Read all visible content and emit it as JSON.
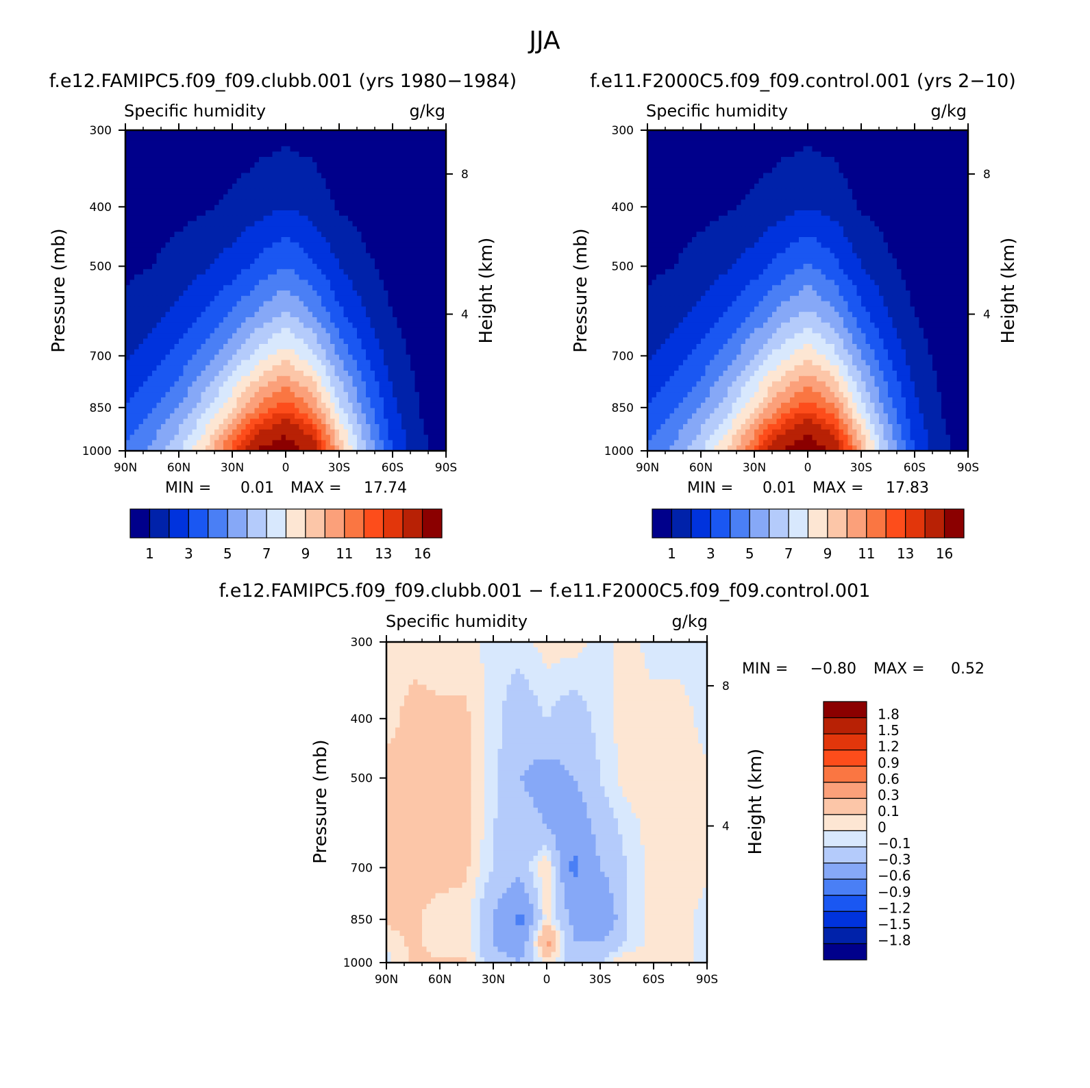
{
  "figure": {
    "title": "JJA"
  },
  "panels": [
    {
      "id": "p1",
      "title": "f.e12.FAMIPC5.f09_f09.clubb.001 (yrs 1980−1984)",
      "variable": "Specific humidity",
      "units": "g/kg",
      "ylabel": "Pressure (mb)",
      "ylabel_right": "Height (km)",
      "pressure_ticks": [
        "300",
        "400",
        "500",
        "700",
        "850",
        "1000"
      ],
      "height_ticks": [
        "8",
        "4"
      ],
      "lat_ticks": [
        "90N",
        "60N",
        "30N",
        "0",
        "30S",
        "60S",
        "90S"
      ],
      "min_label": "MIN =",
      "min_value": "0.01",
      "max_label": "MAX =",
      "max_value": "17.74",
      "colorbar_ticks": [
        "1",
        "3",
        "5",
        "7",
        "9",
        "11",
        "13",
        "16"
      ]
    },
    {
      "id": "p2",
      "title": "f.e11.F2000C5.f09_f09.control.001 (yrs 2−10)",
      "variable": "Specific humidity",
      "units": "g/kg",
      "ylabel": "Pressure (mb)",
      "ylabel_right": "Height (km)",
      "pressure_ticks": [
        "300",
        "400",
        "500",
        "700",
        "850",
        "1000"
      ],
      "height_ticks": [
        "8",
        "4"
      ],
      "lat_ticks": [
        "90N",
        "60N",
        "30N",
        "0",
        "30S",
        "60S",
        "90S"
      ],
      "min_label": "MIN =",
      "min_value": "0.01",
      "max_label": "MAX =",
      "max_value": "17.83",
      "colorbar_ticks": [
        "1",
        "3",
        "5",
        "7",
        "9",
        "11",
        "13",
        "16"
      ]
    },
    {
      "id": "p3",
      "title": "f.e12.FAMIPC5.f09_f09.clubb.001 − f.e11.F2000C5.f09_f09.control.001",
      "variable": "Specific humidity",
      "units": "g/kg",
      "ylabel": "Pressure (mb)",
      "ylabel_right": "Height (km)",
      "pressure_ticks": [
        "300",
        "400",
        "500",
        "700",
        "850",
        "1000"
      ],
      "height_ticks": [
        "8",
        "4"
      ],
      "lat_ticks": [
        "90N",
        "60N",
        "30N",
        "0",
        "30S",
        "60S",
        "90S"
      ],
      "min_label": "MIN =",
      "min_value": "−0.80",
      "max_label": "MAX =",
      "max_value": "0.52",
      "colorbar_ticks": [
        "1.8",
        "1.5",
        "1.2",
        "0.9",
        "0.6",
        "0.3",
        "0.1",
        "0",
        "−0.1",
        "−0.3",
        "−0.6",
        "−0.9",
        "−1.2",
        "−1.5",
        "−1.8"
      ]
    }
  ],
  "chart_data": [
    {
      "type": "heatmap",
      "title": "f.e12.FAMIPC5.f09_f09.clubb.001 (yrs 1980−1984)",
      "subtitle": "Specific humidity (g/kg)",
      "xlabel": "",
      "ylabel": "Pressure (mb)",
      "x_ticks": [
        "90N",
        "60N",
        "30N",
        "0",
        "30S",
        "60S",
        "90S"
      ],
      "xlim": [
        90,
        -90
      ],
      "ylim_pressure": [
        300,
        1000
      ],
      "y_scale": "log",
      "contour_levels": [
        1,
        2,
        3,
        4,
        5,
        6,
        7,
        8,
        9,
        10,
        11,
        12,
        13,
        14,
        16
      ],
      "latitudes": [
        90,
        75,
        60,
        45,
        30,
        15,
        0,
        -15,
        -30,
        -45,
        -60,
        -75,
        -90
      ],
      "pressures": [
        300,
        400,
        500,
        600,
        700,
        850,
        925,
        1000
      ],
      "values": [
        [
          0.2,
          0.2,
          0.3,
          0.3,
          0.4,
          0.6,
          0.7,
          0.6,
          0.3,
          0.2,
          0.1,
          0.05,
          0.02
        ],
        [
          0.4,
          0.5,
          0.7,
          0.9,
          1.2,
          1.6,
          2.0,
          1.6,
          0.9,
          0.6,
          0.3,
          0.1,
          0.05
        ],
        [
          0.8,
          1.0,
          1.4,
          1.9,
          2.5,
          3.3,
          4.0,
          3.2,
          2.0,
          1.2,
          0.6,
          0.2,
          0.1
        ],
        [
          1.3,
          1.7,
          2.3,
          3.1,
          4.1,
          5.3,
          6.2,
          5.1,
          3.3,
          2.0,
          1.0,
          0.4,
          0.2
        ],
        [
          1.9,
          2.5,
          3.3,
          4.5,
          5.9,
          7.5,
          8.6,
          7.3,
          4.9,
          3.0,
          1.5,
          0.7,
          0.3
        ],
        [
          3.0,
          3.8,
          5.0,
          6.7,
          8.9,
          11.2,
          12.6,
          10.9,
          7.3,
          4.5,
          2.2,
          1.0,
          0.5
        ],
        [
          3.6,
          4.6,
          6.0,
          8.0,
          10.7,
          13.7,
          15.3,
          13.2,
          8.8,
          5.4,
          2.6,
          1.1,
          0.6
        ],
        [
          4.1,
          5.3,
          6.8,
          9.2,
          12.5,
          16.2,
          17.74,
          15.2,
          10.0,
          6.0,
          3.0,
          1.2,
          0.6
        ]
      ],
      "min": 0.01,
      "max": 17.74
    },
    {
      "type": "heatmap",
      "title": "f.e11.F2000C5.f09_f09.control.001 (yrs 2−10)",
      "subtitle": "Specific humidity (g/kg)",
      "xlabel": "",
      "ylabel": "Pressure (mb)",
      "x_ticks": [
        "90N",
        "60N",
        "30N",
        "0",
        "30S",
        "60S",
        "90S"
      ],
      "xlim": [
        90,
        -90
      ],
      "ylim_pressure": [
        300,
        1000
      ],
      "y_scale": "log",
      "contour_levels": [
        1,
        2,
        3,
        4,
        5,
        6,
        7,
        8,
        9,
        10,
        11,
        12,
        13,
        14,
        16
      ],
      "latitudes": [
        90,
        75,
        60,
        45,
        30,
        15,
        0,
        -15,
        -30,
        -45,
        -60,
        -75,
        -90
      ],
      "pressures": [
        300,
        400,
        500,
        600,
        700,
        850,
        925,
        1000
      ],
      "values": [
        [
          0.2,
          0.2,
          0.3,
          0.3,
          0.4,
          0.6,
          0.7,
          0.6,
          0.3,
          0.2,
          0.1,
          0.05,
          0.02
        ],
        [
          0.4,
          0.5,
          0.7,
          0.9,
          1.2,
          1.6,
          2.0,
          1.6,
          0.9,
          0.6,
          0.3,
          0.1,
          0.05
        ],
        [
          0.8,
          1.0,
          1.4,
          1.9,
          2.5,
          3.4,
          4.1,
          3.3,
          2.0,
          1.2,
          0.6,
          0.2,
          0.1
        ],
        [
          1.3,
          1.7,
          2.3,
          3.1,
          4.2,
          5.4,
          6.3,
          5.2,
          3.4,
          2.0,
          1.0,
          0.4,
          0.2
        ],
        [
          1.9,
          2.5,
          3.3,
          4.5,
          6.0,
          7.6,
          8.7,
          7.4,
          5.0,
          3.0,
          1.5,
          0.7,
          0.3
        ],
        [
          3.0,
          3.8,
          5.0,
          6.6,
          8.8,
          11.1,
          12.7,
          11.1,
          7.4,
          4.5,
          2.2,
          1.0,
          0.5
        ],
        [
          3.6,
          4.6,
          6.0,
          7.9,
          10.6,
          13.6,
          15.4,
          13.4,
          8.9,
          5.4,
          2.6,
          1.1,
          0.6
        ],
        [
          4.1,
          5.3,
          6.8,
          9.1,
          12.4,
          16.1,
          17.83,
          15.3,
          10.1,
          6.0,
          3.0,
          1.2,
          0.6
        ]
      ],
      "min": 0.01,
      "max": 17.83
    },
    {
      "type": "heatmap",
      "title": "f.e12.FAMIPC5.f09_f09.clubb.001 − f.e11.F2000C5.f09_f09.control.001",
      "subtitle": "Specific humidity (g/kg)",
      "xlabel": "",
      "ylabel": "Pressure (mb)",
      "x_ticks": [
        "90N",
        "60N",
        "30N",
        "0",
        "30S",
        "60S",
        "90S"
      ],
      "xlim": [
        90,
        -90
      ],
      "ylim_pressure": [
        300,
        1000
      ],
      "y_scale": "log",
      "contour_levels": [
        -1.8,
        -1.5,
        -1.2,
        -0.9,
        -0.6,
        -0.3,
        -0.1,
        0,
        0.1,
        0.3,
        0.6,
        0.9,
        1.2,
        1.5,
        1.8
      ],
      "latitudes": [
        90,
        75,
        60,
        45,
        30,
        15,
        0,
        -15,
        -30,
        -45,
        -60,
        -75,
        -90
      ],
      "pressures": [
        300,
        400,
        500,
        600,
        700,
        850,
        925,
        1000
      ],
      "values": [
        [
          0.05,
          0.05,
          0.05,
          0.05,
          -0.05,
          -0.05,
          0.05,
          0.05,
          -0.05,
          0.05,
          -0.05,
          -0.05,
          -0.05
        ],
        [
          0.05,
          0.15,
          0.12,
          0.12,
          -0.05,
          -0.2,
          -0.1,
          -0.2,
          -0.05,
          0.05,
          0.05,
          0.05,
          -0.05
        ],
        [
          0.15,
          0.15,
          0.15,
          0.15,
          -0.05,
          -0.3,
          -0.4,
          -0.3,
          -0.1,
          0.05,
          0.05,
          0.05,
          0.03
        ],
        [
          0.15,
          0.15,
          0.15,
          0.15,
          -0.1,
          -0.2,
          -0.3,
          -0.5,
          -0.2,
          -0.05,
          0.05,
          0.05,
          0.03
        ],
        [
          0.15,
          0.15,
          0.15,
          0.12,
          -0.1,
          -0.2,
          0.12,
          -0.7,
          -0.3,
          -0.1,
          0.05,
          0.05,
          0.03
        ],
        [
          0.12,
          0.12,
          0.05,
          0.05,
          -0.3,
          -0.7,
          0.05,
          -0.35,
          -0.6,
          -0.1,
          0.05,
          0.05,
          -0.05
        ],
        [
          0.05,
          0.12,
          0.05,
          0.05,
          -0.3,
          -0.5,
          0.4,
          -0.3,
          -0.3,
          -0.1,
          0.05,
          0.05,
          -0.05
        ],
        [
          -0.05,
          0.12,
          0.12,
          0.12,
          -0.2,
          -0.3,
          0.05,
          -0.2,
          -0.1,
          0.12,
          0.05,
          0.05,
          -0.05
        ]
      ],
      "min": -0.8,
      "max": 0.52
    }
  ],
  "colormaps": {
    "humidity": [
      "#00008b",
      "#0022aa",
      "#0033dd",
      "#1a57f2",
      "#4a7ff5",
      "#86a8f7",
      "#b4cbfb",
      "#d8e8fd",
      "#fde6d3",
      "#fcc6a8",
      "#fba07a",
      "#fa7642",
      "#fd4d1b",
      "#e2360b",
      "#b82105",
      "#8b0000"
    ],
    "difference": [
      "#00008b",
      "#0022aa",
      "#0033dd",
      "#1a57f2",
      "#4a7ff5",
      "#86a8f7",
      "#b4cbfb",
      "#d8e8fd",
      "#fde6d3",
      "#fcc6a8",
      "#fba07a",
      "#fa7642",
      "#fd4d1b",
      "#e2360b",
      "#b82105",
      "#8b0000"
    ]
  }
}
